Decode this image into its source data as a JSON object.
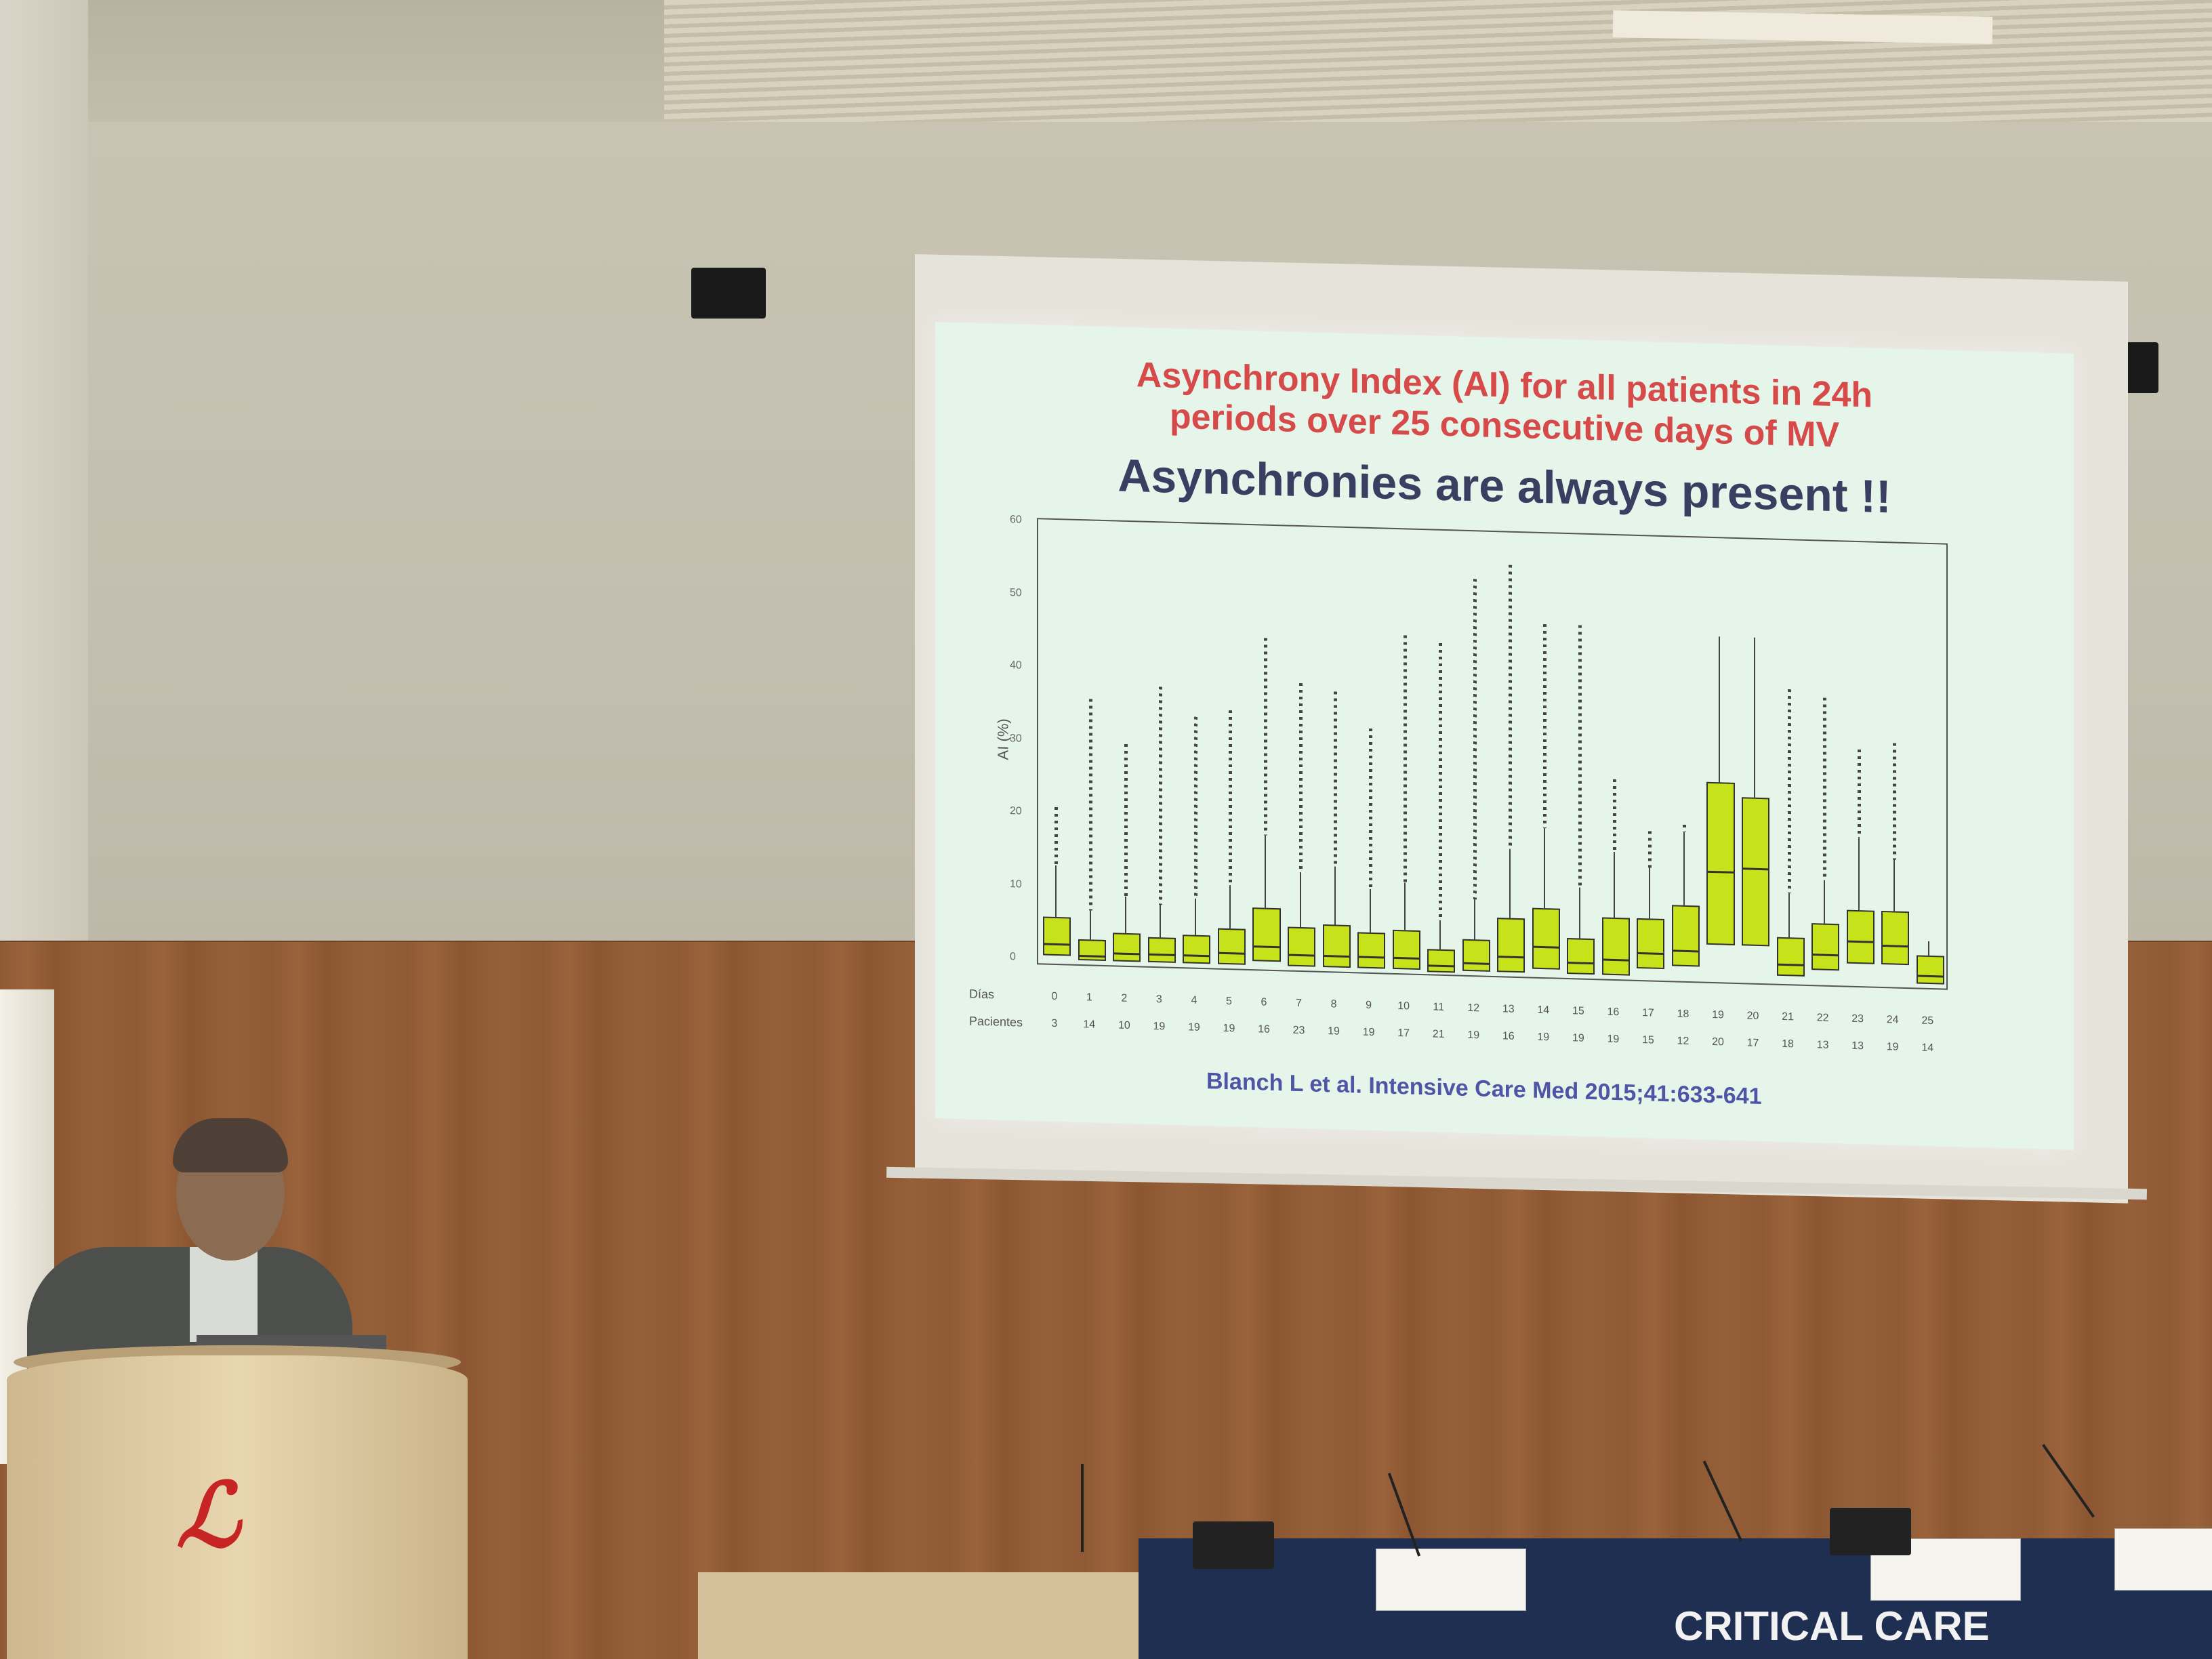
{
  "slide": {
    "title_line1": "Asynchrony Index (AI) for all patients in 24h",
    "title_line2": "periods over 25 consecutive days of MV",
    "headline": "Asynchronies are always present !!",
    "citation": "Blanch L et al. Intensive Care Med 2015;41:633-641"
  },
  "banner": {
    "text": "CRITICAL CARE"
  },
  "chart_data": {
    "type": "box",
    "ylabel": "AI (%)",
    "ylim": [
      0,
      60
    ],
    "yticks": [
      "60",
      "50",
      "40",
      "30",
      "20",
      "10",
      "0"
    ],
    "row_labels": [
      "Días",
      "Pacientes"
    ],
    "categories": [
      "0",
      "1",
      "2",
      "3",
      "4",
      "5",
      "6",
      "7",
      "8",
      "9",
      "10",
      "11",
      "12",
      "13",
      "14",
      "15",
      "16",
      "17",
      "18",
      "19",
      "20",
      "21",
      "22",
      "23",
      "24",
      "25"
    ],
    "patients": [
      "3",
      "14",
      "10",
      "19",
      "19",
      "19",
      "16",
      "23",
      "19",
      "19",
      "17",
      "21",
      "19",
      "16",
      "19",
      "19",
      "19",
      "15",
      "12",
      "20",
      "17",
      "18",
      "13",
      "13",
      "19",
      "14"
    ],
    "boxes": [
      {
        "q1": 1,
        "median": 2.5,
        "q3": 6,
        "whisker_hi": 13
      },
      {
        "q1": 0.5,
        "median": 1,
        "q3": 3,
        "whisker_hi": 7
      },
      {
        "q1": 0.5,
        "median": 1.5,
        "q3": 4,
        "whisker_hi": 9
      },
      {
        "q1": 0.5,
        "median": 1.5,
        "q3": 3.5,
        "whisker_hi": 8
      },
      {
        "q1": 0.5,
        "median": 1.5,
        "q3": 4,
        "whisker_hi": 9
      },
      {
        "q1": 0.5,
        "median": 2,
        "q3": 5,
        "whisker_hi": 11
      },
      {
        "q1": 1,
        "median": 3,
        "q3": 8,
        "whisker_hi": 18
      },
      {
        "q1": 0.5,
        "median": 2,
        "q3": 5.5,
        "whisker_hi": 13
      },
      {
        "q1": 0.5,
        "median": 2,
        "q3": 6,
        "whisker_hi": 14
      },
      {
        "q1": 0.5,
        "median": 2,
        "q3": 5,
        "whisker_hi": 11
      },
      {
        "q1": 0.5,
        "median": 2,
        "q3": 5.5,
        "whisker_hi": 12
      },
      {
        "q1": 0.2,
        "median": 1,
        "q3": 3,
        "whisker_hi": 7
      },
      {
        "q1": 0.5,
        "median": 1.5,
        "q3": 4.5,
        "whisker_hi": 10
      },
      {
        "q1": 0.5,
        "median": 2.5,
        "q3": 7.5,
        "whisker_hi": 17
      },
      {
        "q1": 1,
        "median": 4,
        "q3": 9,
        "whisker_hi": 20
      },
      {
        "q1": 0.5,
        "median": 2,
        "q3": 5,
        "whisker_hi": 12
      },
      {
        "q1": 0.5,
        "median": 2.5,
        "q3": 8,
        "whisker_hi": 17
      },
      {
        "q1": 1.5,
        "median": 3.5,
        "q3": 8,
        "whisker_hi": 15
      },
      {
        "q1": 2,
        "median": 4,
        "q3": 10,
        "whisker_hi": 20
      },
      {
        "q1": 5,
        "median": 15,
        "q3": 27,
        "whisker_hi": 47
      },
      {
        "q1": 5,
        "median": 15.5,
        "q3": 25,
        "whisker_hi": 47
      },
      {
        "q1": 1,
        "median": 2.5,
        "q3": 6,
        "whisker_hi": 12
      },
      {
        "q1": 2,
        "median": 4,
        "q3": 8,
        "whisker_hi": 14
      },
      {
        "q1": 3,
        "median": 6,
        "q3": 10,
        "whisker_hi": 20
      },
      {
        "q1": 3,
        "median": 5.5,
        "q3": 10,
        "whisker_hi": 17
      },
      {
        "q1": 0.5,
        "median": 1.5,
        "q3": 4,
        "whisker_hi": 6
      }
    ],
    "outlier_max": [
      21,
      36,
      30,
      38,
      34,
      35,
      45,
      39,
      38,
      33,
      46,
      45,
      54,
      56,
      48,
      48,
      27,
      20,
      21,
      47,
      47,
      40,
      39,
      32,
      33,
      6
    ]
  }
}
